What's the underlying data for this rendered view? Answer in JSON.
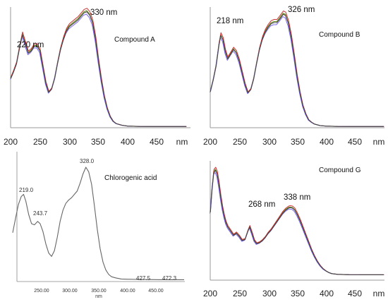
{
  "chart_data": [
    {
      "type": "line",
      "panel": "top-left",
      "title": "Compound A",
      "x_unit": "nm",
      "xlim": [
        200,
        500
      ],
      "x_ticks": [
        "200",
        "250",
        "300",
        "350",
        "400",
        "450"
      ],
      "unit_label": "nm",
      "annotations": [
        "220 nm",
        "330 nm"
      ],
      "colors": [
        "#6b8e23",
        "#cc3333",
        "#7b68ee",
        "#444444"
      ],
      "series_profile": {
        "x": [
          200,
          205,
          210,
          215,
          220,
          225,
          230,
          235,
          240,
          245,
          250,
          255,
          260,
          265,
          270,
          275,
          280,
          285,
          290,
          295,
          300,
          305,
          310,
          315,
          320,
          325,
          330,
          335,
          340,
          345,
          350,
          355,
          360,
          365,
          370,
          375,
          380,
          390,
          400,
          420,
          440,
          460,
          480,
          500
        ],
        "y": [
          0.42,
          0.48,
          0.55,
          0.68,
          0.8,
          0.72,
          0.64,
          0.66,
          0.7,
          0.7,
          0.66,
          0.52,
          0.38,
          0.3,
          0.33,
          0.42,
          0.55,
          0.67,
          0.76,
          0.83,
          0.87,
          0.89,
          0.91,
          0.93,
          0.96,
          0.99,
          1.0,
          0.97,
          0.9,
          0.76,
          0.57,
          0.4,
          0.26,
          0.16,
          0.09,
          0.05,
          0.03,
          0.015,
          0.008,
          0.005,
          0.004,
          0.004,
          0.004,
          0.004
        ]
      }
    },
    {
      "type": "line",
      "panel": "top-right",
      "title": "Compound B",
      "x_unit": "nm",
      "xlim": [
        200,
        500
      ],
      "x_ticks": [
        "200",
        "250",
        "300",
        "350",
        "400",
        "450"
      ],
      "unit_label": "nm",
      "annotations": [
        "218 nm",
        "326 nm"
      ],
      "colors": [
        "#6b8e23",
        "#cc3333",
        "#7b68ee",
        "#444444"
      ],
      "series_profile": {
        "x": [
          200,
          205,
          210,
          215,
          218,
          222,
          226,
          230,
          235,
          240,
          245,
          250,
          255,
          260,
          265,
          270,
          275,
          280,
          285,
          290,
          295,
          300,
          305,
          310,
          315,
          320,
          326,
          330,
          335,
          340,
          345,
          350,
          355,
          360,
          365,
          370,
          375,
          380,
          390,
          400,
          420,
          440,
          460,
          480,
          500
        ],
        "y": [
          0.3,
          0.4,
          0.52,
          0.7,
          0.78,
          0.74,
          0.64,
          0.58,
          0.62,
          0.66,
          0.63,
          0.56,
          0.46,
          0.36,
          0.29,
          0.32,
          0.41,
          0.54,
          0.66,
          0.75,
          0.81,
          0.85,
          0.88,
          0.89,
          0.89,
          0.92,
          0.96,
          0.95,
          0.88,
          0.76,
          0.6,
          0.43,
          0.29,
          0.18,
          0.11,
          0.06,
          0.04,
          0.025,
          0.012,
          0.008,
          0.005,
          0.004,
          0.004,
          0.004,
          0.004
        ]
      }
    },
    {
      "type": "line",
      "panel": "bottom-left",
      "title": "Chlorogenic acid",
      "x_unit": "nm",
      "xlim": [
        200,
        500
      ],
      "x_ticks": [
        "250.00",
        "300.00",
        "350.00",
        "400.00",
        "450.00"
      ],
      "unit_label": "nm",
      "annotations": [
        "219.0",
        "243.7",
        "328.0",
        "427.5",
        "472.3"
      ],
      "colors": [
        "#666666"
      ],
      "series_profile": {
        "x": [
          200,
          205,
          210,
          215,
          219,
          223,
          228,
          233,
          238,
          243.7,
          248,
          253,
          258,
          263,
          268,
          273,
          278,
          283,
          288,
          293,
          298,
          303,
          308,
          313,
          318,
          323,
          328,
          333,
          338,
          343,
          348,
          353,
          358,
          363,
          368,
          373,
          380,
          390,
          400,
          420,
          440,
          460,
          480,
          500
        ],
        "y": [
          0.42,
          0.55,
          0.67,
          0.74,
          0.76,
          0.7,
          0.58,
          0.5,
          0.49,
          0.52,
          0.5,
          0.43,
          0.32,
          0.24,
          0.21,
          0.26,
          0.38,
          0.52,
          0.62,
          0.68,
          0.71,
          0.73,
          0.76,
          0.79,
          0.86,
          0.94,
          1.0,
          0.96,
          0.85,
          0.66,
          0.45,
          0.28,
          0.16,
          0.09,
          0.05,
          0.03,
          0.02,
          0.01,
          0.008,
          0.006,
          0.005,
          0.004,
          0.004,
          0.004
        ]
      }
    },
    {
      "type": "line",
      "panel": "bottom-right",
      "title": "Compound G",
      "x_unit": "nm",
      "xlim": [
        200,
        500
      ],
      "x_ticks": [
        "200",
        "250",
        "300",
        "350",
        "400",
        "450"
      ],
      "unit_label": "nm",
      "annotations": [
        "268 nm",
        "338 nm"
      ],
      "colors": [
        "#6b8e23",
        "#cc3333",
        "#7b68ee",
        "#444444"
      ],
      "series_profile": {
        "x": [
          200,
          203,
          206,
          209,
          212,
          215,
          218,
          221,
          224,
          227,
          230,
          235,
          240,
          245,
          250,
          255,
          260,
          265,
          268,
          272,
          276,
          280,
          285,
          290,
          295,
          300,
          305,
          310,
          315,
          320,
          325,
          330,
          335,
          338,
          342,
          346,
          350,
          355,
          360,
          365,
          370,
          375,
          380,
          385,
          390,
          395,
          400,
          405,
          410,
          420,
          440,
          460,
          480,
          500
        ],
        "y": [
          0.6,
          0.82,
          0.98,
          1.0,
          0.96,
          0.86,
          0.74,
          0.64,
          0.56,
          0.5,
          0.46,
          0.42,
          0.38,
          0.4,
          0.37,
          0.33,
          0.34,
          0.42,
          0.46,
          0.4,
          0.33,
          0.3,
          0.31,
          0.33,
          0.36,
          0.4,
          0.43,
          0.47,
          0.51,
          0.55,
          0.59,
          0.62,
          0.64,
          0.645,
          0.64,
          0.62,
          0.58,
          0.52,
          0.45,
          0.38,
          0.31,
          0.24,
          0.18,
          0.13,
          0.09,
          0.06,
          0.04,
          0.025,
          0.015,
          0.008,
          0.005,
          0.004,
          0.004,
          0.004
        ]
      }
    }
  ]
}
